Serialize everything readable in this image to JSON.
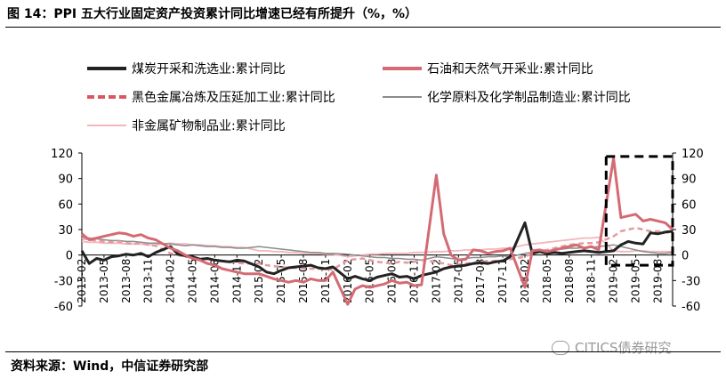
{
  "figure": {
    "title": "图 14：PPI 五大行业固定资产投资累计同比增速已经有所提升（%，%）",
    "source": "资料来源：Wind，中信证券研究部",
    "watermark": "CITICS债券研究",
    "watermark_icon": "wechat-icon"
  },
  "chart_data": {
    "type": "line",
    "title": "",
    "xlabel": "",
    "ylabel": "",
    "ylim": [
      -60,
      120
    ],
    "yticks": [
      120,
      90,
      60,
      30,
      0,
      -30,
      -60
    ],
    "ytick_labels": [
      "120",
      "90",
      "60",
      "30",
      "0",
      "-30",
      "-60"
    ],
    "grid": false,
    "legend_position": "top",
    "x_tick_labels": [
      "2013-02",
      "2013-05",
      "2013-08",
      "2013-11",
      "2014-02",
      "2014-05",
      "2014-08",
      "2014-11",
      "2015-02",
      "2015-05",
      "2015-08",
      "2015-11",
      "2016-02",
      "2016-05",
      "2016-08",
      "2016-11",
      "2017-02",
      "2017-05",
      "2017-08",
      "2017-11",
      "2018-02",
      "2018-05",
      "2018-08",
      "2018-11",
      "2019-02",
      "2019-05",
      "2019-08"
    ],
    "x": [
      "2013-02",
      "2013-03",
      "2013-04",
      "2013-05",
      "2013-06",
      "2013-07",
      "2013-08",
      "2013-09",
      "2013-10",
      "2013-11",
      "2013-12",
      "2014-02",
      "2014-03",
      "2014-04",
      "2014-05",
      "2014-06",
      "2014-07",
      "2014-08",
      "2014-09",
      "2014-10",
      "2014-11",
      "2014-12",
      "2015-02",
      "2015-03",
      "2015-04",
      "2015-05",
      "2015-06",
      "2015-07",
      "2015-08",
      "2015-09",
      "2015-10",
      "2015-11",
      "2015-12",
      "2016-02",
      "2016-03",
      "2016-04",
      "2016-05",
      "2016-06",
      "2016-07",
      "2016-08",
      "2016-09",
      "2016-10",
      "2016-11",
      "2016-12",
      "2017-02",
      "2017-03",
      "2017-04",
      "2017-05",
      "2017-06",
      "2017-07",
      "2017-08",
      "2017-09",
      "2017-10",
      "2017-11",
      "2017-12",
      "2018-02",
      "2018-03",
      "2018-04",
      "2018-05",
      "2018-06",
      "2018-07",
      "2018-08",
      "2018-09",
      "2018-10",
      "2018-11",
      "2018-12",
      "2019-02",
      "2019-03",
      "2019-04",
      "2019-05",
      "2019-06",
      "2019-07",
      "2019-08",
      "2019-09",
      "2019-10"
    ],
    "series": [
      {
        "name": "煤炭开采和洗选业:累计同比",
        "color": "#222222",
        "style": "solid",
        "values": [
          5,
          -10,
          -4,
          -6,
          -2,
          -1,
          1,
          0,
          2,
          -2,
          3,
          10,
          1,
          -1,
          -2,
          -5,
          -4,
          -6,
          -7,
          -8,
          -6,
          -7,
          -14,
          -20,
          -22,
          -18,
          -15,
          -14,
          -13,
          -12,
          -15,
          -16,
          -14,
          -28,
          -25,
          -28,
          -30,
          -26,
          -24,
          -22,
          -26,
          -25,
          -28,
          -24,
          -20,
          -16,
          -14,
          -13,
          -12,
          -10,
          -9,
          -10,
          -8,
          -7,
          -2,
          38,
          2,
          4,
          2,
          3,
          2,
          3,
          4,
          5,
          4,
          3,
          5,
          12,
          16,
          14,
          13,
          26,
          25,
          27,
          28
        ]
      },
      {
        "name": "石油和天然气开采业:累计同比",
        "color": "#d46a73",
        "style": "solid",
        "values": [
          25,
          18,
          20,
          22,
          24,
          26,
          25,
          22,
          24,
          20,
          18,
          8,
          5,
          0,
          -4,
          -6,
          -10,
          -12,
          -16,
          -18,
          -20,
          -22,
          -22,
          -25,
          -28,
          -30,
          -32,
          -30,
          -32,
          -28,
          -30,
          -30,
          -20,
          -58,
          -40,
          -36,
          -38,
          -36,
          -34,
          -30,
          -33,
          -32,
          -36,
          -35,
          94,
          25,
          0,
          -6,
          -5,
          6,
          5,
          2,
          4,
          5,
          8,
          -38,
          5,
          6,
          4,
          6,
          8,
          10,
          12,
          8,
          10,
          6,
          114,
          44,
          46,
          48,
          40,
          42,
          40,
          38,
          30
        ]
      },
      {
        "name": "黑色金属冶炼及压延加工业:累计同比",
        "color": "#e59aa0",
        "style": "dashed",
        "values": [
          20,
          18,
          17,
          16,
          15,
          16,
          14,
          13,
          14,
          12,
          11,
          2,
          0,
          -2,
          -3,
          -4,
          -5,
          -6,
          -7,
          -8,
          -9,
          -10,
          -10,
          -12,
          -13,
          -14,
          -15,
          -15,
          -16,
          -16,
          -16,
          -17,
          -17,
          -6,
          -5,
          -4,
          -6,
          -8,
          -9,
          -10,
          -8,
          -9,
          -8,
          -6,
          -8,
          -10,
          -12,
          -11,
          -10,
          -9,
          -8,
          -7,
          -7,
          -6,
          -5,
          -2,
          2,
          4,
          6,
          8,
          10,
          12,
          13,
          14,
          14,
          15,
          22,
          28,
          30,
          32,
          30,
          28,
          28,
          27,
          26
        ]
      },
      {
        "name": "化学原料及化学制品制造业:累计同比",
        "color": "#8c8c8c",
        "style": "solid",
        "values": [
          22,
          20,
          19,
          18,
          17,
          17,
          16,
          16,
          15,
          14,
          14,
          13,
          12,
          11,
          12,
          11,
          10,
          10,
          9,
          9,
          8,
          8,
          10,
          9,
          8,
          7,
          6,
          5,
          4,
          3,
          3,
          2,
          2,
          1,
          0,
          -1,
          -2,
          -3,
          -3,
          -4,
          -4,
          -5,
          -5,
          -6,
          -2,
          -3,
          -4,
          -5,
          -4,
          -3,
          -3,
          -2,
          -2,
          -1,
          -2,
          2,
          3,
          4,
          5,
          6,
          7,
          8,
          8,
          9,
          9,
          10,
          12,
          10,
          8,
          6,
          4,
          3,
          2,
          2,
          3
        ]
      },
      {
        "name": "非金属矿物制品业:累计同比",
        "color": "#f2b6bb",
        "style": "solid",
        "values": [
          16,
          15,
          15,
          14,
          14,
          14,
          13,
          13,
          13,
          12,
          12,
          14,
          13,
          13,
          12,
          12,
          11,
          11,
          10,
          10,
          9,
          9,
          5,
          5,
          4,
          4,
          3,
          3,
          2,
          2,
          2,
          1,
          1,
          -2,
          -1,
          0,
          1,
          1,
          2,
          2,
          2,
          2,
          3,
          3,
          4,
          4,
          5,
          5,
          6,
          6,
          6,
          7,
          7,
          8,
          8,
          12,
          13,
          14,
          15,
          16,
          17,
          18,
          19,
          20,
          20,
          21,
          5,
          4,
          4,
          5,
          5,
          4,
          4,
          4,
          4
        ]
      }
    ],
    "highlight_box": {
      "x_start": "2019-01",
      "x_end": "2019-10",
      "y_start": -12,
      "y_end": 116,
      "style": "dashed"
    }
  }
}
